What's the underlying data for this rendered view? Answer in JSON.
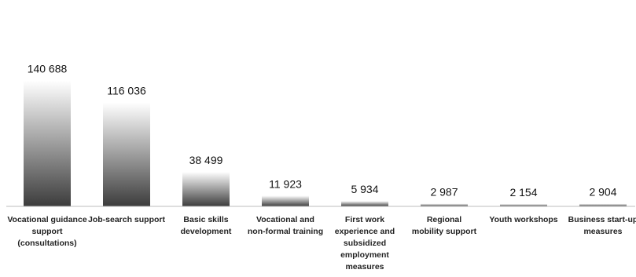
{
  "chart_data": {
    "type": "bar",
    "categories": [
      [
        "Vocational guidance",
        "support",
        "(consultations)"
      ],
      [
        "Job-search support"
      ],
      [
        "Basic skills",
        "development"
      ],
      [
        "Vocational  and",
        "non-formal training"
      ],
      [
        "First work",
        "experience and",
        "subsidized",
        "employment",
        "measures"
      ],
      [
        "Regional",
        "mobility support"
      ],
      [
        "Youth workshops"
      ],
      [
        "Business start-up",
        "measures"
      ]
    ],
    "values": [
      140688,
      116036,
      38499,
      11923,
      5934,
      2987,
      2154,
      2904
    ],
    "value_labels": [
      "140 688",
      "116 036",
      "38 499",
      "11 923",
      "5 934",
      "2 987",
      "2 154",
      "2 904"
    ],
    "ylim": [
      0,
      150000
    ],
    "grid": false,
    "legend": "none",
    "colors": {
      "bar_top": "#ffffff",
      "bar_bottom": "#3c3c3c",
      "axis": "#bdbdbd"
    }
  }
}
